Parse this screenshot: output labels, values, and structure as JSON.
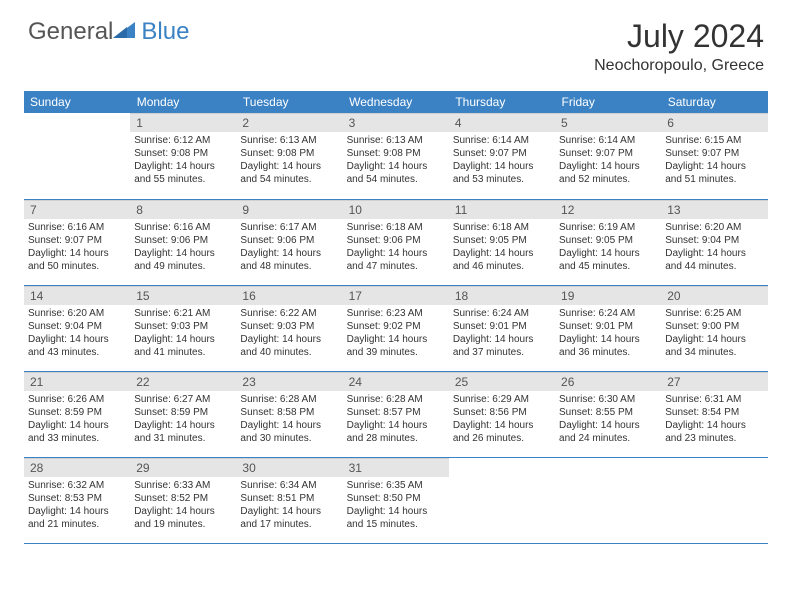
{
  "brand": {
    "part1": "General",
    "part2": "Blue",
    "logo_color": "#3b82c4"
  },
  "title": "July 2024",
  "location": "Neochoropoulo, Greece",
  "colors": {
    "header_bg": "#3b82c4",
    "header_text": "#ffffff",
    "daynum_bg": "#e5e5e5",
    "text": "#333333",
    "border": "#3b82c4"
  },
  "dayHeaders": [
    "Sunday",
    "Monday",
    "Tuesday",
    "Wednesday",
    "Thursday",
    "Friday",
    "Saturday"
  ],
  "weeks": [
    [
      {
        "num": "",
        "lines": []
      },
      {
        "num": "1",
        "lines": [
          "Sunrise: 6:12 AM",
          "Sunset: 9:08 PM",
          "Daylight: 14 hours and 55 minutes."
        ]
      },
      {
        "num": "2",
        "lines": [
          "Sunrise: 6:13 AM",
          "Sunset: 9:08 PM",
          "Daylight: 14 hours and 54 minutes."
        ]
      },
      {
        "num": "3",
        "lines": [
          "Sunrise: 6:13 AM",
          "Sunset: 9:08 PM",
          "Daylight: 14 hours and 54 minutes."
        ]
      },
      {
        "num": "4",
        "lines": [
          "Sunrise: 6:14 AM",
          "Sunset: 9:07 PM",
          "Daylight: 14 hours and 53 minutes."
        ]
      },
      {
        "num": "5",
        "lines": [
          "Sunrise: 6:14 AM",
          "Sunset: 9:07 PM",
          "Daylight: 14 hours and 52 minutes."
        ]
      },
      {
        "num": "6",
        "lines": [
          "Sunrise: 6:15 AM",
          "Sunset: 9:07 PM",
          "Daylight: 14 hours and 51 minutes."
        ]
      }
    ],
    [
      {
        "num": "7",
        "lines": [
          "Sunrise: 6:16 AM",
          "Sunset: 9:07 PM",
          "Daylight: 14 hours and 50 minutes."
        ]
      },
      {
        "num": "8",
        "lines": [
          "Sunrise: 6:16 AM",
          "Sunset: 9:06 PM",
          "Daylight: 14 hours and 49 minutes."
        ]
      },
      {
        "num": "9",
        "lines": [
          "Sunrise: 6:17 AM",
          "Sunset: 9:06 PM",
          "Daylight: 14 hours and 48 minutes."
        ]
      },
      {
        "num": "10",
        "lines": [
          "Sunrise: 6:18 AM",
          "Sunset: 9:06 PM",
          "Daylight: 14 hours and 47 minutes."
        ]
      },
      {
        "num": "11",
        "lines": [
          "Sunrise: 6:18 AM",
          "Sunset: 9:05 PM",
          "Daylight: 14 hours and 46 minutes."
        ]
      },
      {
        "num": "12",
        "lines": [
          "Sunrise: 6:19 AM",
          "Sunset: 9:05 PM",
          "Daylight: 14 hours and 45 minutes."
        ]
      },
      {
        "num": "13",
        "lines": [
          "Sunrise: 6:20 AM",
          "Sunset: 9:04 PM",
          "Daylight: 14 hours and 44 minutes."
        ]
      }
    ],
    [
      {
        "num": "14",
        "lines": [
          "Sunrise: 6:20 AM",
          "Sunset: 9:04 PM",
          "Daylight: 14 hours and 43 minutes."
        ]
      },
      {
        "num": "15",
        "lines": [
          "Sunrise: 6:21 AM",
          "Sunset: 9:03 PM",
          "Daylight: 14 hours and 41 minutes."
        ]
      },
      {
        "num": "16",
        "lines": [
          "Sunrise: 6:22 AM",
          "Sunset: 9:03 PM",
          "Daylight: 14 hours and 40 minutes."
        ]
      },
      {
        "num": "17",
        "lines": [
          "Sunrise: 6:23 AM",
          "Sunset: 9:02 PM",
          "Daylight: 14 hours and 39 minutes."
        ]
      },
      {
        "num": "18",
        "lines": [
          "Sunrise: 6:24 AM",
          "Sunset: 9:01 PM",
          "Daylight: 14 hours and 37 minutes."
        ]
      },
      {
        "num": "19",
        "lines": [
          "Sunrise: 6:24 AM",
          "Sunset: 9:01 PM",
          "Daylight: 14 hours and 36 minutes."
        ]
      },
      {
        "num": "20",
        "lines": [
          "Sunrise: 6:25 AM",
          "Sunset: 9:00 PM",
          "Daylight: 14 hours and 34 minutes."
        ]
      }
    ],
    [
      {
        "num": "21",
        "lines": [
          "Sunrise: 6:26 AM",
          "Sunset: 8:59 PM",
          "Daylight: 14 hours and 33 minutes."
        ]
      },
      {
        "num": "22",
        "lines": [
          "Sunrise: 6:27 AM",
          "Sunset: 8:59 PM",
          "Daylight: 14 hours and 31 minutes."
        ]
      },
      {
        "num": "23",
        "lines": [
          "Sunrise: 6:28 AM",
          "Sunset: 8:58 PM",
          "Daylight: 14 hours and 30 minutes."
        ]
      },
      {
        "num": "24",
        "lines": [
          "Sunrise: 6:28 AM",
          "Sunset: 8:57 PM",
          "Daylight: 14 hours and 28 minutes."
        ]
      },
      {
        "num": "25",
        "lines": [
          "Sunrise: 6:29 AM",
          "Sunset: 8:56 PM",
          "Daylight: 14 hours and 26 minutes."
        ]
      },
      {
        "num": "26",
        "lines": [
          "Sunrise: 6:30 AM",
          "Sunset: 8:55 PM",
          "Daylight: 14 hours and 24 minutes."
        ]
      },
      {
        "num": "27",
        "lines": [
          "Sunrise: 6:31 AM",
          "Sunset: 8:54 PM",
          "Daylight: 14 hours and 23 minutes."
        ]
      }
    ],
    [
      {
        "num": "28",
        "lines": [
          "Sunrise: 6:32 AM",
          "Sunset: 8:53 PM",
          "Daylight: 14 hours and 21 minutes."
        ]
      },
      {
        "num": "29",
        "lines": [
          "Sunrise: 6:33 AM",
          "Sunset: 8:52 PM",
          "Daylight: 14 hours and 19 minutes."
        ]
      },
      {
        "num": "30",
        "lines": [
          "Sunrise: 6:34 AM",
          "Sunset: 8:51 PM",
          "Daylight: 14 hours and 17 minutes."
        ]
      },
      {
        "num": "31",
        "lines": [
          "Sunrise: 6:35 AM",
          "Sunset: 8:50 PM",
          "Daylight: 14 hours and 15 minutes."
        ]
      },
      {
        "num": "",
        "lines": []
      },
      {
        "num": "",
        "lines": []
      },
      {
        "num": "",
        "lines": []
      }
    ]
  ]
}
